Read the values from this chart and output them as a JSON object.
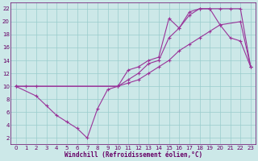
{
  "bg_color": "#cce8e8",
  "line_color": "#993399",
  "grid_color": "#99cccc",
  "xlabel": "Windchill (Refroidissement éolien,°C)",
  "xlabel_color": "#660066",
  "tick_color": "#660066",
  "xlim": [
    -0.5,
    23.5
  ],
  "ylim": [
    1,
    23
  ],
  "xticks": [
    0,
    1,
    2,
    3,
    4,
    5,
    6,
    7,
    8,
    9,
    10,
    11,
    12,
    13,
    14,
    15,
    16,
    17,
    18,
    19,
    20,
    21,
    22,
    23
  ],
  "yticks": [
    2,
    4,
    6,
    8,
    10,
    12,
    14,
    16,
    18,
    20,
    22
  ],
  "line1_x": [
    0,
    1,
    2,
    10,
    11,
    12,
    13,
    14,
    15,
    16,
    17,
    18,
    19,
    20,
    21,
    22,
    23
  ],
  "line1_y": [
    10,
    10,
    10,
    10,
    11,
    12,
    13.5,
    14,
    17.5,
    19,
    21,
    22,
    22,
    22,
    22,
    22,
    13
  ],
  "line2_x": [
    0,
    2,
    3,
    4,
    5,
    6,
    7,
    8,
    9,
    10,
    11,
    12,
    13,
    14,
    15,
    16,
    17,
    18,
    19,
    20,
    21,
    22,
    23
  ],
  "line2_y": [
    10,
    8.5,
    7,
    5.5,
    4.5,
    3.5,
    2,
    6.5,
    9.5,
    10,
    12.5,
    13,
    14,
    14.5,
    20.5,
    19,
    21.5,
    22,
    22,
    19.5,
    17.5,
    17,
    13
  ],
  "line3_x": [
    0,
    10,
    11,
    12,
    13,
    14,
    15,
    16,
    17,
    18,
    19,
    20,
    22,
    23
  ],
  "line3_y": [
    10,
    10,
    10.5,
    11,
    12,
    13,
    14,
    15.5,
    16.5,
    17.5,
    18.5,
    19.5,
    20,
    13
  ],
  "marker": "+"
}
